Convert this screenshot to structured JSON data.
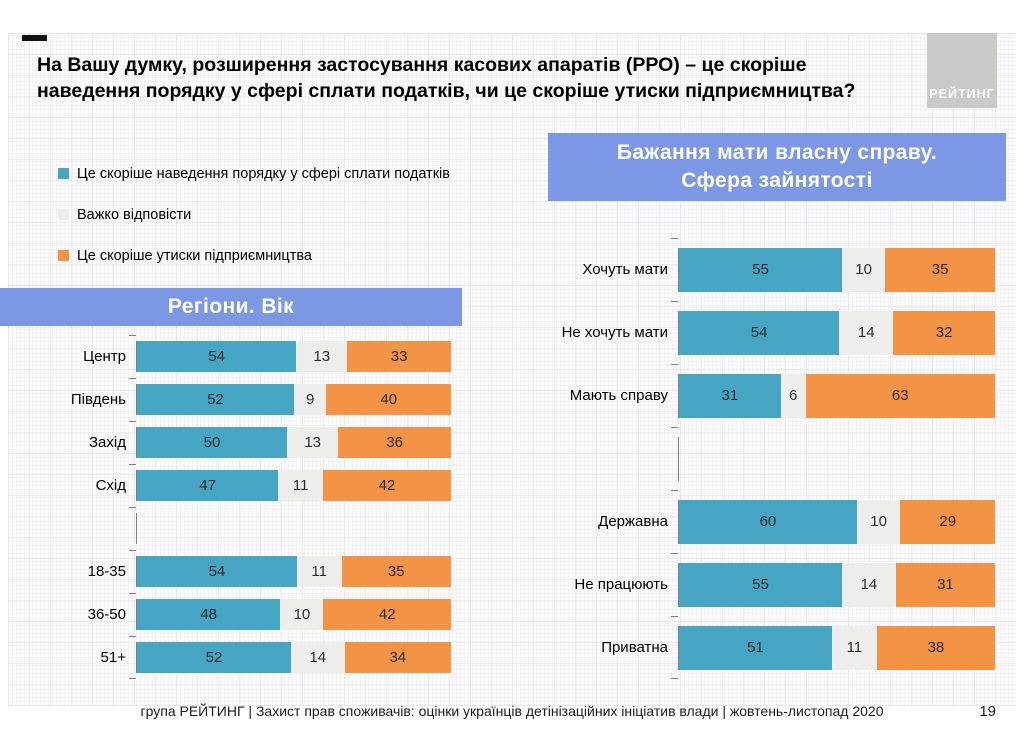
{
  "title": "На Вашу думку, розширення застосування касових апаратів (РРО) – це скоріше наведення порядку у сфері сплати податків, чи це скоріше утиски підприємництва?",
  "logo": {
    "text": "РЕЙТИНГ"
  },
  "colors": {
    "series": [
      "#46a5c2",
      "#ededeb",
      "#f29346"
    ],
    "banner": "#7c97e3",
    "logo_bg": "#c9c9c7",
    "axis": "#7f7f7f"
  },
  "legend": {
    "items": [
      {
        "label": "Це скоріше наведення порядку у сфері сплати податків"
      },
      {
        "label": "Важко відповісти"
      },
      {
        "label": "Це скоріше утиски підприємництва"
      }
    ]
  },
  "banners": {
    "left": "Регіони. Вік",
    "right_line1": "Бажання мати власну справу.",
    "right_line2": "Сфера зайнятості"
  },
  "footer": {
    "text": "група РЕЙТИНГ  | Захист прав споживачів: оцінки українців детінізаційних ініціатив влади  | жовтень-листопад 2020",
    "page_number": "19"
  },
  "chart_data": [
    {
      "type": "bar",
      "orientation": "horizontal",
      "stacked": true,
      "title": "Регіони. Вік",
      "x_range": [
        0,
        100
      ],
      "series_names": [
        "Це скоріше наведення порядку у сфері сплати податків",
        "Важко відповісти",
        "Це скоріше утиски підприємництва"
      ],
      "groups": [
        {
          "name": "Регіони",
          "rows": [
            {
              "label": "Центр",
              "values": [
                54,
                13,
                33
              ]
            },
            {
              "label": "Південь",
              "values": [
                52,
                9,
                40
              ]
            },
            {
              "label": "Захід",
              "values": [
                50,
                13,
                36
              ]
            },
            {
              "label": "Схід",
              "values": [
                47,
                11,
                42
              ]
            }
          ]
        },
        {
          "name": "Вік",
          "rows": [
            {
              "label": "18-35",
              "values": [
                54,
                11,
                35
              ]
            },
            {
              "label": "36-50",
              "values": [
                48,
                10,
                42
              ]
            },
            {
              "label": "51+",
              "values": [
                52,
                14,
                34
              ]
            }
          ]
        }
      ]
    },
    {
      "type": "bar",
      "orientation": "horizontal",
      "stacked": true,
      "title": "Бажання мати власну справу. Сфера зайнятості",
      "x_range": [
        0,
        100
      ],
      "series_names": [
        "Це скоріше наведення порядку у сфері сплати податків",
        "Важко відповісти",
        "Це скоріше утиски підприємництва"
      ],
      "groups": [
        {
          "name": "Бажання мати власну справу",
          "rows": [
            {
              "label": "Хочуть мати",
              "values": [
                55,
                10,
                35
              ]
            },
            {
              "label": "Не хочуть мати",
              "values": [
                54,
                14,
                32
              ]
            },
            {
              "label": "Мають справу",
              "values": [
                31,
                6,
                63
              ]
            }
          ]
        },
        {
          "name": "Сфера зайнятості",
          "rows": [
            {
              "label": "Державна",
              "values": [
                60,
                10,
                29
              ]
            },
            {
              "label": "Не працюють",
              "values": [
                55,
                14,
                31
              ]
            },
            {
              "label": "Приватна",
              "values": [
                51,
                11,
                38
              ]
            }
          ]
        }
      ]
    }
  ]
}
